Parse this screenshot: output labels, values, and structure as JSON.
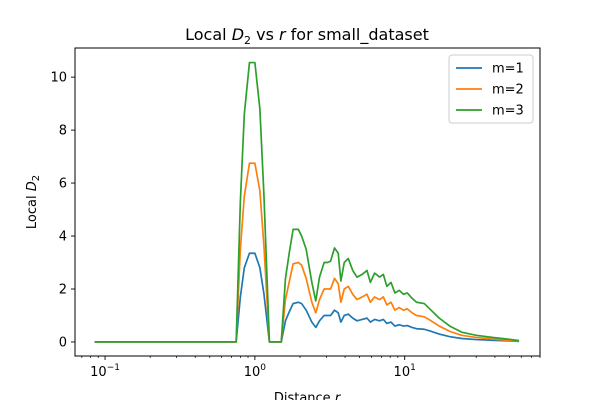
{
  "chart_data": {
    "type": "line",
    "title": "Local D₂ vs r for small_dataset",
    "title_parts": {
      "prefix": "Local ",
      "d": "D",
      "sub": "2",
      "mid": " vs ",
      "r": "r",
      "suffix": " for small_dataset"
    },
    "xlabel_parts": {
      "prefix": "Distance ",
      "r": "r"
    },
    "ylabel_parts": {
      "prefix": "Local ",
      "d": "D",
      "sub": "2"
    },
    "xscale": "log",
    "xlim": [
      0.063,
      80
    ],
    "ylim": [
      -0.53,
      11.1
    ],
    "x_ticks": [
      {
        "value": 0.1,
        "base": "10",
        "exp": "−1"
      },
      {
        "value": 1,
        "base": "10",
        "exp": "0"
      },
      {
        "value": 10,
        "base": "10",
        "exp": "1"
      }
    ],
    "y_ticks": [
      "0",
      "2",
      "4",
      "6",
      "8",
      "10"
    ],
    "legend": "top-right",
    "grid": false,
    "x": [
      0.085,
      0.2,
      0.5,
      0.75,
      0.8,
      0.85,
      0.92,
      1.0,
      1.08,
      1.15,
      1.25,
      1.5,
      1.6,
      1.7,
      1.8,
      1.95,
      2.05,
      2.2,
      2.4,
      2.55,
      2.7,
      2.9,
      3.05,
      3.2,
      3.4,
      3.6,
      3.75,
      3.95,
      4.2,
      4.5,
      4.8,
      5.2,
      5.6,
      5.9,
      6.3,
      6.8,
      7.2,
      7.6,
      8.1,
      8.6,
      9.2,
      9.8,
      10.4,
      11.2,
      12,
      13.5,
      15,
      17,
      20,
      24,
      30,
      40,
      50,
      58
    ],
    "series": [
      {
        "name": "m=1",
        "color": "#1f77b4",
        "values": [
          0,
          0,
          0,
          0,
          1.7,
          2.8,
          3.35,
          3.35,
          2.8,
          1.8,
          0,
          0,
          0.8,
          1.15,
          1.45,
          1.5,
          1.45,
          1.2,
          0.75,
          0.55,
          0.8,
          1.0,
          1.0,
          1.0,
          1.2,
          1.1,
          0.75,
          1.0,
          1.05,
          0.9,
          0.8,
          0.85,
          0.9,
          0.75,
          0.85,
          0.8,
          0.85,
          0.7,
          0.75,
          0.6,
          0.65,
          0.6,
          0.62,
          0.55,
          0.5,
          0.48,
          0.4,
          0.3,
          0.2,
          0.13,
          0.09,
          0.06,
          0.04,
          0.02
        ]
      },
      {
        "name": "m=2",
        "color": "#ff7f0e",
        "values": [
          0,
          0,
          0,
          0,
          3.5,
          5.5,
          6.75,
          6.75,
          5.7,
          3.6,
          0,
          0,
          1.6,
          2.3,
          2.95,
          3.0,
          2.9,
          2.4,
          1.5,
          1.1,
          1.6,
          2.0,
          2.0,
          2.0,
          2.4,
          2.2,
          1.5,
          2.0,
          2.1,
          1.8,
          1.6,
          1.7,
          1.8,
          1.5,
          1.7,
          1.6,
          1.7,
          1.4,
          1.5,
          1.2,
          1.3,
          1.2,
          1.25,
          1.1,
          1.0,
          0.95,
          0.8,
          0.6,
          0.4,
          0.25,
          0.17,
          0.1,
          0.06,
          0.03
        ]
      },
      {
        "name": "m=3",
        "color": "#2ca02c",
        "values": [
          0,
          0,
          0,
          0,
          5.3,
          8.6,
          10.55,
          10.55,
          8.8,
          5.5,
          0,
          0,
          2.4,
          3.4,
          4.25,
          4.25,
          4.0,
          3.5,
          2.25,
          1.55,
          2.45,
          3.0,
          3.0,
          3.05,
          3.55,
          3.35,
          2.3,
          3.0,
          3.15,
          2.7,
          2.45,
          2.55,
          2.7,
          2.25,
          2.6,
          2.45,
          2.55,
          2.1,
          2.25,
          1.85,
          1.95,
          1.8,
          1.85,
          1.65,
          1.5,
          1.45,
          1.2,
          0.9,
          0.6,
          0.37,
          0.25,
          0.16,
          0.1,
          0.05
        ]
      }
    ]
  }
}
